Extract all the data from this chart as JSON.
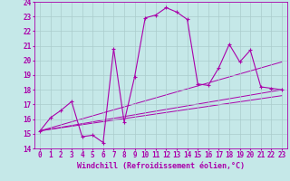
{
  "background_color": "#c5e8e8",
  "grid_color": "#aacccc",
  "line_color": "#aa00aa",
  "xlim": [
    -0.5,
    23.5
  ],
  "ylim": [
    14,
    24
  ],
  "xlabel": "Windchill (Refroidissement éolien,°C)",
  "xlabel_fontsize": 6.0,
  "xticks": [
    0,
    1,
    2,
    3,
    4,
    5,
    6,
    7,
    8,
    9,
    10,
    11,
    12,
    13,
    14,
    15,
    16,
    17,
    18,
    19,
    20,
    21,
    22,
    23
  ],
  "yticks": [
    14,
    15,
    16,
    17,
    18,
    19,
    20,
    21,
    22,
    23,
    24
  ],
  "tick_fontsize": 5.5,
  "main_series": {
    "x": [
      0,
      1,
      2,
      3,
      4,
      5,
      6,
      7,
      8,
      9,
      10,
      11,
      12,
      13,
      14,
      15,
      16,
      17,
      18,
      19,
      20,
      21,
      22,
      23
    ],
    "y": [
      15.2,
      16.1,
      16.6,
      17.2,
      14.8,
      14.9,
      14.4,
      20.8,
      15.8,
      18.9,
      22.9,
      23.1,
      23.6,
      23.3,
      22.8,
      18.4,
      18.3,
      19.5,
      21.1,
      19.9,
      20.7,
      18.2,
      18.1,
      18.0
    ]
  },
  "trend_lines": [
    {
      "x": [
        0,
        23
      ],
      "y": [
        15.2,
        19.9
      ]
    },
    {
      "x": [
        0,
        23
      ],
      "y": [
        15.2,
        18.0
      ]
    },
    {
      "x": [
        0,
        23
      ],
      "y": [
        15.2,
        17.6
      ]
    }
  ]
}
